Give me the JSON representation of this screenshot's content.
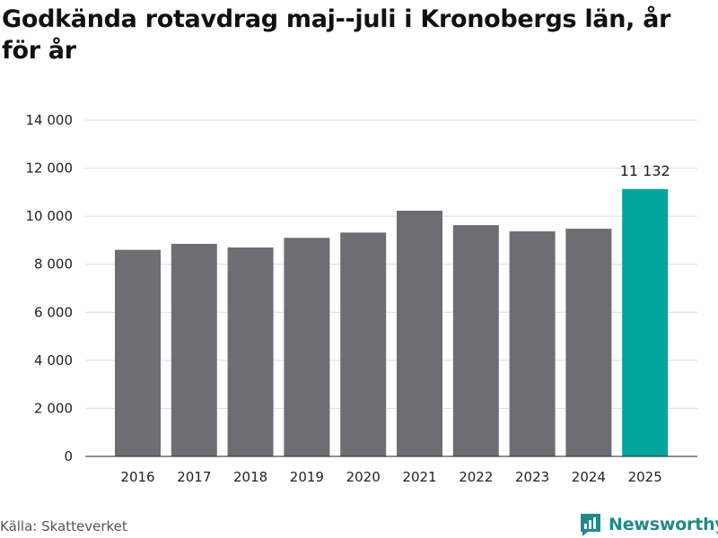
{
  "title": "Godkända rotavdrag maj--juli i Kronobergs län, år för år",
  "source": "Källa: Skatteverket",
  "brand": {
    "name": "Newsworthy",
    "icon": "newsworthy-logo-icon"
  },
  "colors": {
    "bar": "#6e6d73",
    "highlight": "#00a59b",
    "grid": "#dddddd",
    "brand": "#1f8a8a"
  },
  "chart_data": {
    "type": "bar",
    "title": "Godkända rotavdrag maj--juli i Kronobergs län, år för år",
    "xlabel": "",
    "ylabel": "",
    "categories": [
      "2016",
      "2017",
      "2018",
      "2019",
      "2020",
      "2021",
      "2022",
      "2023",
      "2024",
      "2025"
    ],
    "values": [
      8600,
      8850,
      8700,
      9100,
      9320,
      10230,
      9630,
      9370,
      9480,
      11132
    ],
    "highlight_index": 9,
    "data_labels": [
      {
        "index": 9,
        "text": "11 132"
      }
    ],
    "ylim": [
      0,
      14000
    ],
    "y_ticks": [
      {
        "value": 0,
        "label": "0"
      },
      {
        "value": 2000,
        "label": "2 000"
      },
      {
        "value": 4000,
        "label": "4 000"
      },
      {
        "value": 6000,
        "label": "6 000"
      },
      {
        "value": 8000,
        "label": "8 000"
      },
      {
        "value": 10000,
        "label": "10 000"
      },
      {
        "value": 12000,
        "label": "12 000"
      },
      {
        "value": 14000,
        "label": "14 000"
      }
    ],
    "grid": true,
    "legend": "none"
  }
}
